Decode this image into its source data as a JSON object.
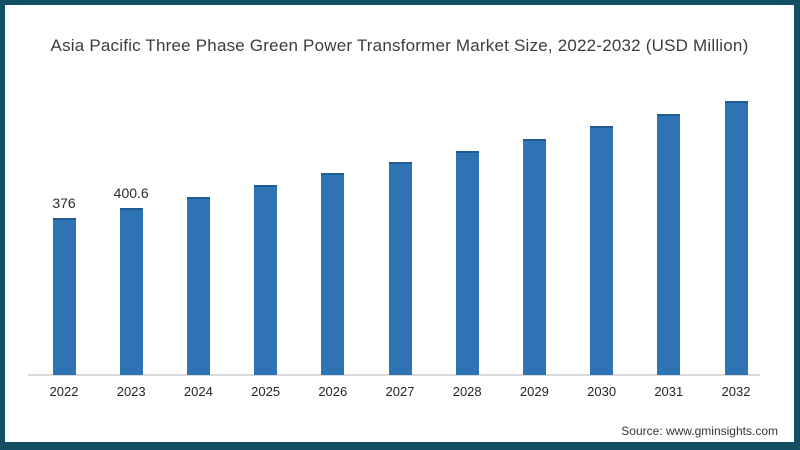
{
  "frame": {
    "border_color": "#134f63",
    "background_color": "#ffffff"
  },
  "title": "Asia Pacific Three Phase Green Power Transformer Market Size, 2022-2032 (USD Million)",
  "source": "Source: www.gminsights.com",
  "chart_data": {
    "type": "bar",
    "title": "Asia Pacific Three Phase Green Power Transformer Market Size, 2022-2032 (USD Million)",
    "xlabel": "",
    "ylabel": "USD Million",
    "categories": [
      "2022",
      "2023",
      "2024",
      "2025",
      "2026",
      "2027",
      "2028",
      "2029",
      "2030",
      "2031",
      "2032"
    ],
    "values": [
      376,
      400.6,
      426.6,
      455.4,
      484.2,
      510.5,
      536.9,
      565.7,
      596.8,
      625.6,
      656.8
    ],
    "data_labels": [
      "376",
      "400.6",
      "",
      "",
      "",
      "",
      "",
      "",
      "",
      "",
      ""
    ],
    "bar_color": "#2e74b5",
    "axis_line_color": "#d9d9d9",
    "ylim": [
      0,
      700
    ],
    "grid": false,
    "legend": "none"
  }
}
